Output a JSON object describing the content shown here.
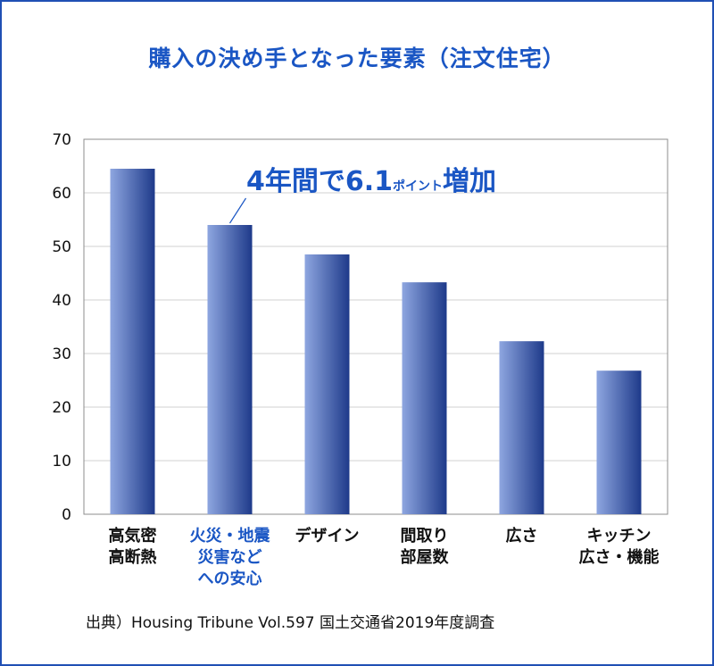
{
  "colors": {
    "border": "#1f4fb4",
    "title": "#1a56c4",
    "highlight": "#1a56c4",
    "bar_light": "#8ea6e0",
    "bar_dark": "#1e3a8a",
    "grid": "#d0d0d0"
  },
  "chart_data": {
    "type": "bar",
    "title": "購入の決め手となった要素（注文住宅）",
    "categories": [
      [
        "高気密",
        "高断熱"
      ],
      [
        "火災・地震",
        "災害など",
        "への安心"
      ],
      [
        "デザイン"
      ],
      [
        "間取り",
        "部屋数"
      ],
      [
        "広さ"
      ],
      [
        "キッチン",
        "広さ・機能"
      ]
    ],
    "values": [
      64.5,
      54.0,
      48.5,
      43.3,
      32.3,
      26.8
    ],
    "highlight_index": 1,
    "ylim": [
      0,
      70
    ],
    "yticks": [
      0,
      10,
      20,
      30,
      40,
      50,
      60,
      70
    ],
    "grid": true,
    "xlabel": "",
    "ylabel": "",
    "annotation": {
      "main": "4年間で6.1",
      "small": "ポイント",
      "tail": "増加",
      "target_index": 1
    }
  },
  "source": "出典）Housing Tribune Vol.597  国土交通省2019年度調査"
}
